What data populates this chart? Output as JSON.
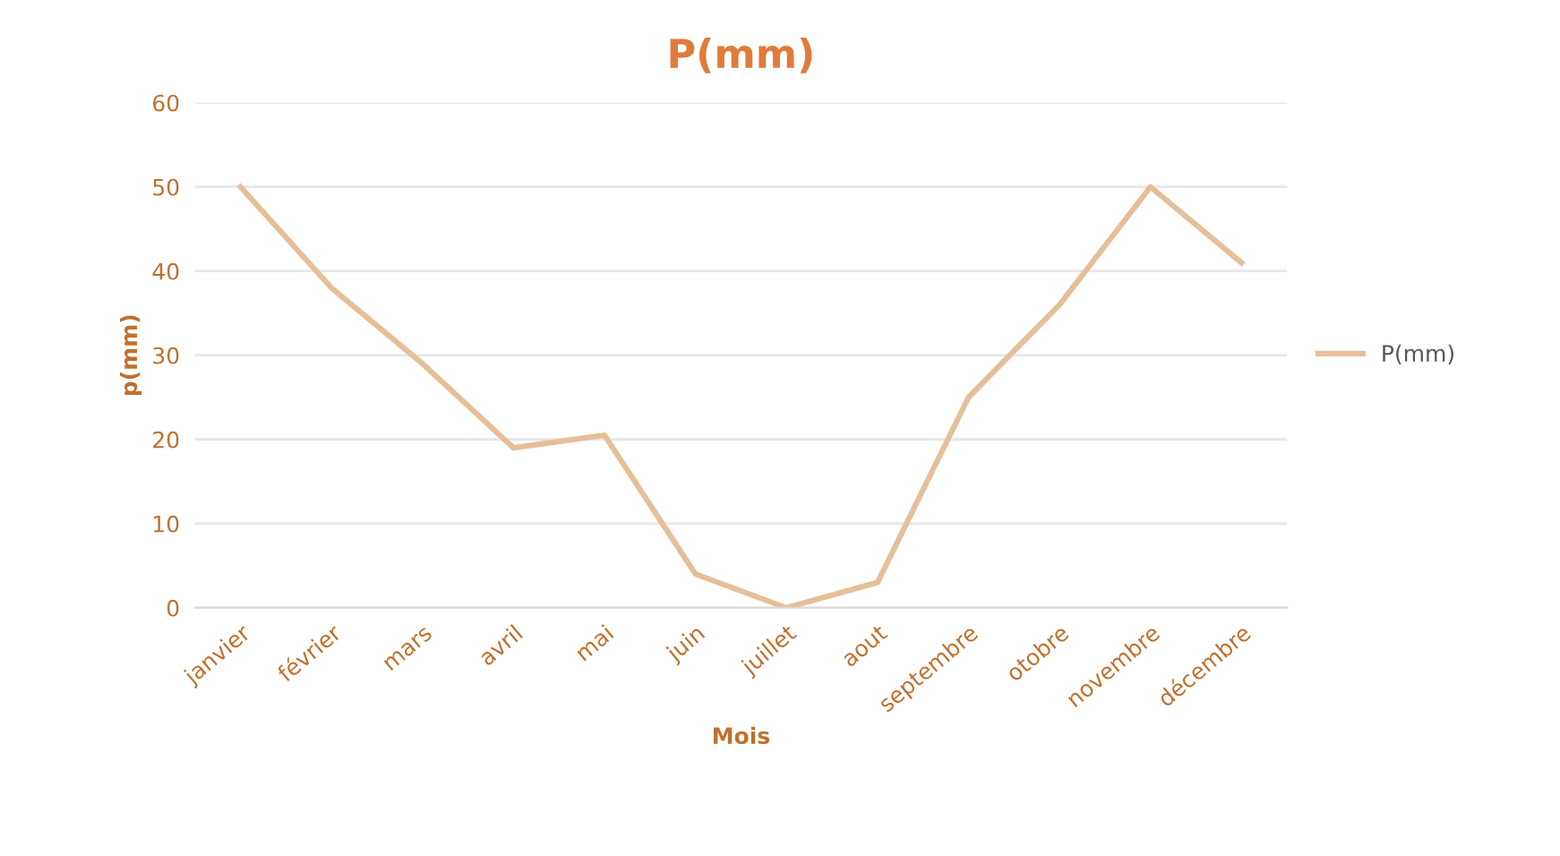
{
  "chart_data": {
    "type": "line",
    "title": "P(mm)",
    "xlabel": "Mois",
    "ylabel": "p(mm)",
    "categories": [
      "janvier",
      "février",
      "mars",
      "avril",
      "mai",
      "juin",
      "juillet",
      "aout",
      "septembre",
      "otobre",
      "novembre",
      "décembre"
    ],
    "series": [
      {
        "name": "P(mm)",
        "color": "#e6bf98",
        "values": [
          50,
          38,
          29,
          19,
          20.5,
          4,
          0,
          3,
          25,
          36,
          50,
          41
        ]
      }
    ],
    "ylim": [
      0,
      60
    ],
    "yticks": [
      0,
      10,
      20,
      30,
      40,
      50,
      60
    ],
    "grid": "y",
    "legend": "right",
    "marker": "none",
    "line_style": "solid"
  }
}
